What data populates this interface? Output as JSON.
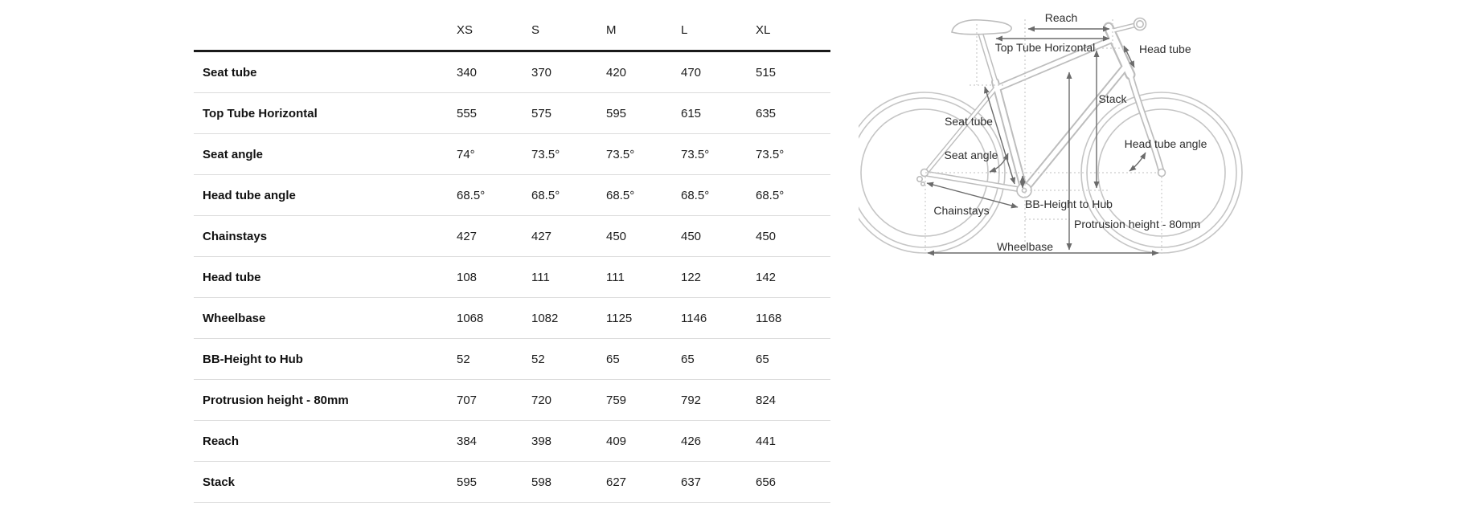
{
  "table": {
    "size_headers": [
      "XS",
      "S",
      "M",
      "L",
      "XL"
    ],
    "rows": [
      {
        "label": "Seat tube",
        "values": [
          "340",
          "370",
          "420",
          "470",
          "515"
        ]
      },
      {
        "label": "Top Tube Horizontal",
        "values": [
          "555",
          "575",
          "595",
          "615",
          "635"
        ]
      },
      {
        "label": "Seat angle",
        "values": [
          "74°",
          "73.5°",
          "73.5°",
          "73.5°",
          "73.5°"
        ]
      },
      {
        "label": "Head tube angle",
        "values": [
          "68.5°",
          "68.5°",
          "68.5°",
          "68.5°",
          "68.5°"
        ]
      },
      {
        "label": "Chainstays",
        "values": [
          "427",
          "427",
          "450",
          "450",
          "450"
        ]
      },
      {
        "label": "Head tube",
        "values": [
          "108",
          "111",
          "111",
          "122",
          "142"
        ]
      },
      {
        "label": "Wheelbase",
        "values": [
          "1068",
          "1082",
          "1125",
          "1146",
          "1168"
        ]
      },
      {
        "label": "BB-Height to Hub",
        "values": [
          "52",
          "52",
          "65",
          "65",
          "65"
        ]
      },
      {
        "label": "Protrusion height - 80mm",
        "values": [
          "707",
          "720",
          "759",
          "792",
          "824"
        ]
      },
      {
        "label": "Reach",
        "values": [
          "384",
          "398",
          "409",
          "426",
          "441"
        ]
      },
      {
        "label": "Stack",
        "values": [
          "595",
          "598",
          "627",
          "637",
          "656"
        ]
      }
    ]
  },
  "diagram": {
    "labels": {
      "reach": "Reach",
      "top_tube_horizontal": "Top Tube Horizontal",
      "head_tube": "Head tube",
      "stack": "Stack",
      "seat_tube": "Seat tube",
      "seat_angle": "Seat angle",
      "head_tube_angle": "Head tube angle",
      "chainstays": "Chainstays",
      "bb_height_to_hub": "BB-Height to Hub",
      "protrusion_height": "Protrusion height - 80mm",
      "wheelbase": "Wheelbase"
    }
  },
  "colors": {
    "table_header_rule": "#1a1a1a",
    "row_divider": "#dcdcdc",
    "bike_outline": "#c0c0c0",
    "dimension_arrow": "#6b6b6b",
    "construction_dotted": "#cccccc",
    "text": "#1c1c1c"
  }
}
